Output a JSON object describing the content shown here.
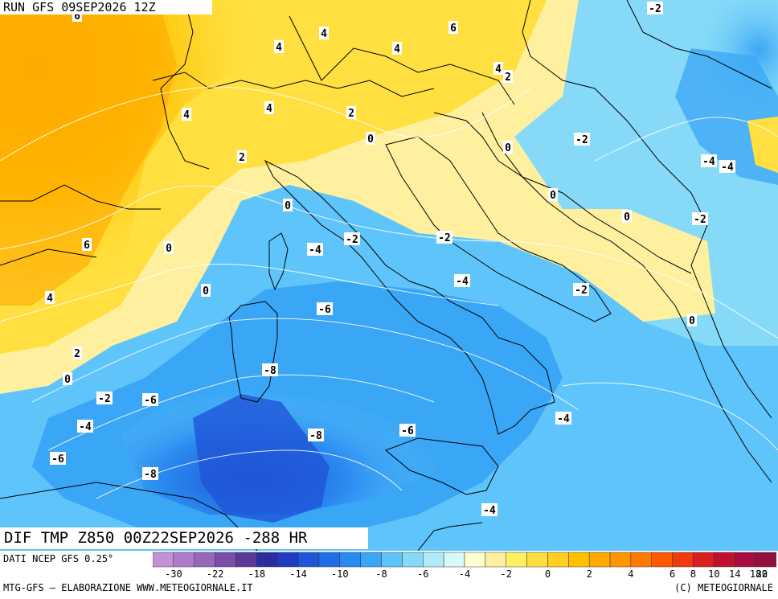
{
  "header": {
    "run_label": "RUN GFS 09SEP2026 12Z"
  },
  "map_title": "DIF TMP Z850 00Z22SEP2026 -288 HR",
  "source_label": "DATI NCEP GFS 0.25°",
  "footer": {
    "left": "MTG-GFS — ELABORAZIONE WWW.METEOGIORNALE.IT",
    "right": "(C) METEOGIORNALE"
  },
  "legend": {
    "tick_labels": [
      "-30",
      "-22",
      "-18",
      "-14",
      "-10",
      "-8",
      "-6",
      "-4",
      "-2",
      "0",
      "2",
      "4",
      "6",
      "8",
      "10",
      "14",
      "18",
      "22",
      "30"
    ],
    "colors": [
      "#c490d8",
      "#b07cc8",
      "#9868b8",
      "#7a4ea8",
      "#5a3a98",
      "#2c2ca0",
      "#1f3cc0",
      "#1f55d8",
      "#1f6ee8",
      "#2a8af0",
      "#3aa6f6",
      "#5ec4fa",
      "#86daf8",
      "#b0ecf8",
      "#d8f8fa",
      "#ffffd0",
      "#fff0a0",
      "#fff060",
      "#ffe040",
      "#ffd020",
      "#ffc000",
      "#ffaa00",
      "#ff9600",
      "#ff7a00",
      "#ff5a00",
      "#f03a10",
      "#d82020",
      "#c01030",
      "#a80c40",
      "#901040"
    ]
  },
  "contour_labels": [
    {
      "t": "-2"
    },
    {
      "t": "6"
    },
    {
      "t": "6"
    },
    {
      "t": "4"
    },
    {
      "t": "4"
    },
    {
      "t": "4"
    },
    {
      "t": "2"
    },
    {
      "t": "4"
    },
    {
      "t": "4"
    },
    {
      "t": "2"
    },
    {
      "t": "4"
    },
    {
      "t": "2"
    },
    {
      "t": "0"
    },
    {
      "t": "0"
    },
    {
      "t": "-2"
    },
    {
      "t": "-4"
    },
    {
      "t": "-4"
    },
    {
      "t": "0"
    },
    {
      "t": "0"
    },
    {
      "t": "-2"
    },
    {
      "t": "0"
    },
    {
      "t": "-2"
    },
    {
      "t": "-4"
    },
    {
      "t": "-2"
    },
    {
      "t": "6"
    },
    {
      "t": "0"
    },
    {
      "t": "-4"
    },
    {
      "t": "-2"
    },
    {
      "t": "0"
    },
    {
      "t": "4"
    },
    {
      "t": "-6"
    },
    {
      "t": "0"
    },
    {
      "t": "2"
    },
    {
      "t": "0"
    },
    {
      "t": "-8"
    },
    {
      "t": "-2"
    },
    {
      "t": "-6"
    },
    {
      "t": "-4"
    },
    {
      "t": "-4"
    },
    {
      "t": "-6"
    },
    {
      "t": "-8"
    },
    {
      "t": "-6"
    },
    {
      "t": "-8"
    },
    {
      "t": "-4"
    }
  ]
}
